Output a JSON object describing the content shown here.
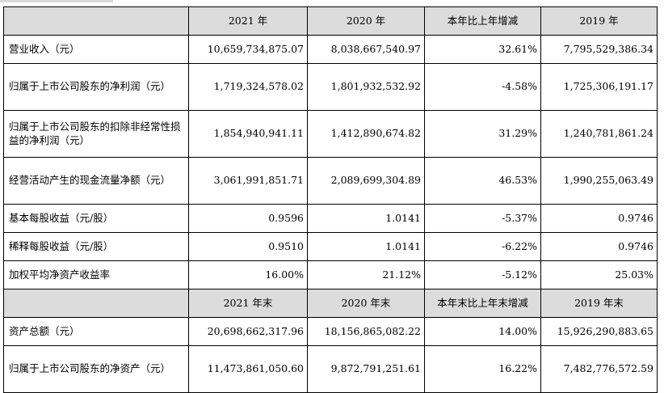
{
  "table": {
    "header1": {
      "col0": "",
      "col1": "2021 年",
      "col2": "2020 年",
      "col3": "本年比上年增减",
      "col4": "2019 年"
    },
    "rows1": [
      {
        "label": "营业收入（元）",
        "v2021": "10,659,734,875.07",
        "v2020": "8,038,667,540.97",
        "change": "32.61%",
        "v2019": "7,795,529,386.34"
      },
      {
        "label": "归属于上市公司股东的净利润（元）",
        "v2021": "1,719,324,578.02",
        "v2020": "1,801,932,532.92",
        "change": "-4.58%",
        "v2019": "1,725,306,191.17"
      },
      {
        "label": "归属于上市公司股东的扣除非经常性损益的净利润（元）",
        "v2021": "1,854,940,941.11",
        "v2020": "1,412,890,674.82",
        "change": "31.29%",
        "v2019": "1,240,781,861.24"
      },
      {
        "label": "经营活动产生的现金流量净额（元）",
        "v2021": "3,061,991,851.71",
        "v2020": "2,089,699,304.89",
        "change": "46.53%",
        "v2019": "1,990,255,063.49"
      },
      {
        "label": "基本每股收益（元/股）",
        "v2021": "0.9596",
        "v2020": "1.0141",
        "change": "-5.37%",
        "v2019": "0.9746"
      },
      {
        "label": "稀释每股收益（元/股）",
        "v2021": "0.9510",
        "v2020": "1.0141",
        "change": "-6.22%",
        "v2019": "0.9746"
      },
      {
        "label": "加权平均净资产收益率",
        "v2021": "16.00%",
        "v2020": "21.12%",
        "change": "-5.12%",
        "v2019": "25.03%"
      }
    ],
    "header2": {
      "col0": "",
      "col1": "2021 年末",
      "col2": "2020 年末",
      "col3": "本年末比上年末增减",
      "col4": "2019 年末"
    },
    "rows2": [
      {
        "label": "资产总额（元）",
        "v2021": "20,698,662,317.96",
        "v2020": "18,156,865,082.22",
        "change": "14.00%",
        "v2019": "15,926,290,883.65"
      },
      {
        "label": "归属于上市公司股东的净资产（元）",
        "v2021": "11,473,861,050.60",
        "v2020": "9,872,791,251.61",
        "change": "16.22%",
        "v2019": "7,482,776,572.59"
      }
    ]
  }
}
